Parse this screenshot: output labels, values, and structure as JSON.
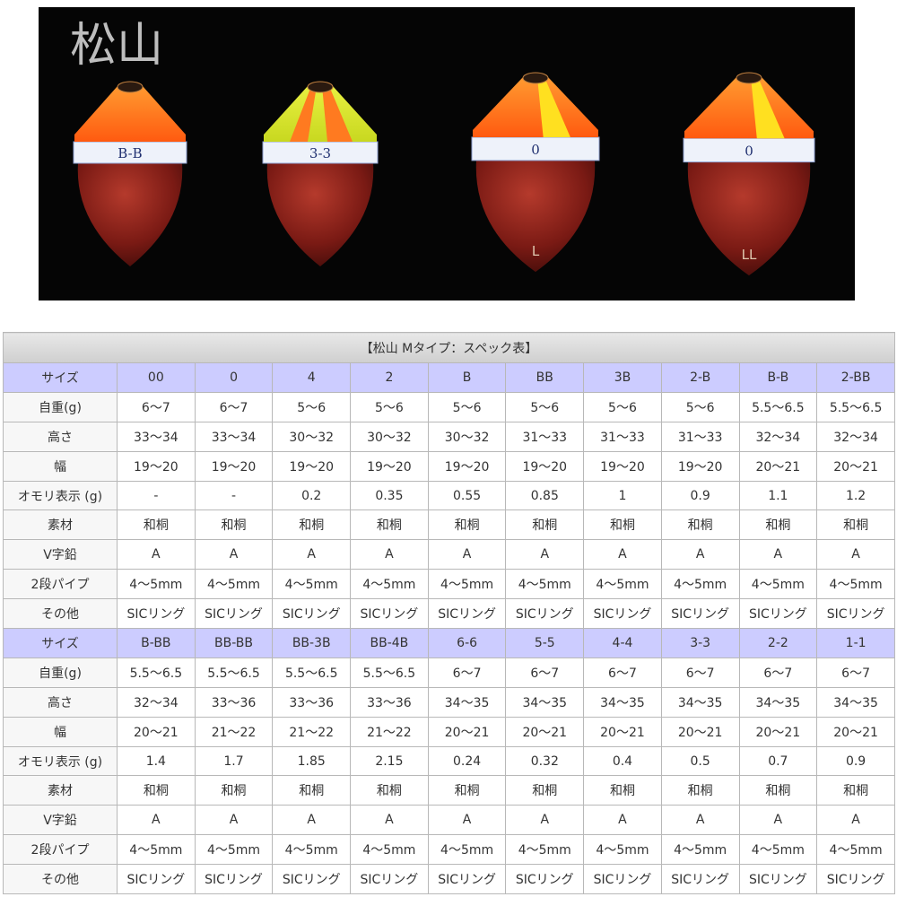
{
  "banner": {
    "title": "松山",
    "floats": [
      {
        "band": "B-B"
      },
      {
        "band": "3-3"
      },
      {
        "band": "0",
        "size": "L"
      },
      {
        "band": "0",
        "size": "LL"
      }
    ]
  },
  "table": {
    "title": "【松山 Mタイプ：スペック表】",
    "rows": [
      [
        "サイズ",
        "00",
        "0",
        "4",
        "2",
        "B",
        "BB",
        "3B",
        "2-B",
        "B-B",
        "2-BB"
      ],
      [
        "自重(g)",
        "6～7",
        "6～7",
        "5～6",
        "5～6",
        "5～6",
        "5～6",
        "5～6",
        "5～6",
        "5.5～6.5",
        "5.5～6.5"
      ],
      [
        "高さ",
        "33～34",
        "33～34",
        "30～32",
        "30～32",
        "30～32",
        "31～33",
        "31～33",
        "31～33",
        "32～34",
        "32～34"
      ],
      [
        "幅",
        "19～20",
        "19～20",
        "19～20",
        "19～20",
        "19～20",
        "19～20",
        "19～20",
        "19～20",
        "20～21",
        "20～21"
      ],
      [
        "オモリ表示 (g)",
        "-",
        "-",
        "0.2",
        "0.35",
        "0.55",
        "0.85",
        "1",
        "0.9",
        "1.1",
        "1.2"
      ],
      [
        "素材",
        "和桐",
        "和桐",
        "和桐",
        "和桐",
        "和桐",
        "和桐",
        "和桐",
        "和桐",
        "和桐",
        "和桐"
      ],
      [
        "V字鉛",
        "A",
        "A",
        "A",
        "A",
        "A",
        "A",
        "A",
        "A",
        "A",
        "A"
      ],
      [
        "2段パイプ",
        "4～5mm",
        "4～5mm",
        "4～5mm",
        "4～5mm",
        "4～5mm",
        "4～5mm",
        "4～5mm",
        "4～5mm",
        "4～5mm",
        "4～5mm"
      ],
      [
        "その他",
        "SICリング",
        "SICリング",
        "SICリング",
        "SICリング",
        "SICリング",
        "SICリング",
        "SICリング",
        "SICリング",
        "SICリング",
        "SICリング"
      ],
      [
        "サイズ",
        "B-BB",
        "BB-BB",
        "BB-3B",
        "BB-4B",
        "6-6",
        "5-5",
        "4-4",
        "3-3",
        "2-2",
        "1-1"
      ],
      [
        "自重(g)",
        "5.5～6.5",
        "5.5～6.5",
        "5.5～6.5",
        "5.5～6.5",
        "6～7",
        "6～7",
        "6～7",
        "6～7",
        "6～7",
        "6～7"
      ],
      [
        "高さ",
        "32～34",
        "33～36",
        "33～36",
        "33～36",
        "34～35",
        "34～35",
        "34～35",
        "34～35",
        "34～35",
        "34～35"
      ],
      [
        "幅",
        "20～21",
        "21～22",
        "21～22",
        "21～22",
        "20～21",
        "20～21",
        "20～21",
        "20～21",
        "20～21",
        "20～21"
      ],
      [
        "オモリ表示 (g)",
        "1.4",
        "1.7",
        "1.85",
        "2.15",
        "0.24",
        "0.32",
        "0.4",
        "0.5",
        "0.7",
        "0.9"
      ],
      [
        "素材",
        "和桐",
        "和桐",
        "和桐",
        "和桐",
        "和桐",
        "和桐",
        "和桐",
        "和桐",
        "和桐",
        "和桐"
      ],
      [
        "V字鉛",
        "A",
        "A",
        "A",
        "A",
        "A",
        "A",
        "A",
        "A",
        "A",
        "A"
      ],
      [
        "2段パイプ",
        "4～5mm",
        "4～5mm",
        "4～5mm",
        "4～5mm",
        "4～5mm",
        "4～5mm",
        "4～5mm",
        "4～5mm",
        "4～5mm",
        "4～5mm"
      ],
      [
        "その他",
        "SICリング",
        "SICリング",
        "SICリング",
        "SICリング",
        "SICリング",
        "SICリング",
        "SICリング",
        "SICリング",
        "SICリング",
        "SICリング"
      ]
    ]
  }
}
